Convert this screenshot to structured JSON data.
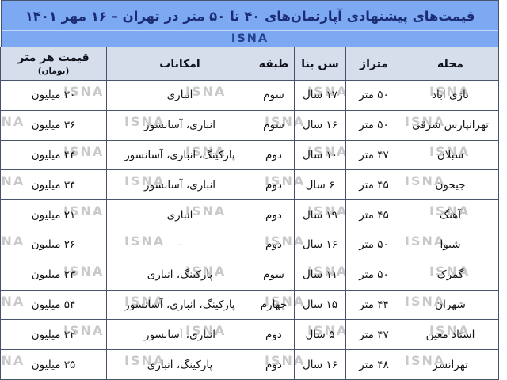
{
  "banner": {
    "title": "قیمت‌های پیشنهادی آپارتمان‌های ۴۰ تا ۵۰ متر در تهران – ۱۶ مهر ۱۴۰۱",
    "logo": "ISNA"
  },
  "watermark": {
    "text": "ISNA"
  },
  "colors": {
    "banner_bg": "#7DA9F2",
    "header_bg": "#D6DEEC",
    "title_text": "#1B2C74",
    "logo_text": "#24418F",
    "border": "#46536b",
    "watermark": "#c9c9c9"
  },
  "chart_data": {
    "type": "table",
    "title": "قیمت‌های پیشنهادی آپارتمان‌های ۴۰ تا ۵۰ متر در تهران – ۱۶ مهر ۱۴۰۱",
    "source_logo": "ISNA",
    "columns": [
      {
        "key": "mahalleh",
        "label": "محله"
      },
      {
        "key": "metraj",
        "label": "متراژ"
      },
      {
        "key": "sen_bana",
        "label": "سن بنا"
      },
      {
        "key": "tabaqeh",
        "label": "طبقه"
      },
      {
        "key": "emkanat",
        "label": "امکانات"
      },
      {
        "key": "gheymat",
        "label": "قیمت هر متر",
        "sub": "(تومان)"
      }
    ],
    "rows": [
      [
        "نازی آباد",
        "۵۰ متر",
        "۱۷ سال",
        "سوم",
        "انباری",
        "۳۰ میلیون"
      ],
      [
        "تهرانپارس شرقی",
        "۵۰ متر",
        "۱۶ سال",
        "سوم",
        "انباری، آسانسور",
        "۳۶ میلیون"
      ],
      [
        "سبلان",
        "۴۷ متر",
        "۱۰ سال",
        "دوم",
        "پارکینگ، انباری، آسانسور",
        "۴۴ میلیون"
      ],
      [
        "جیحون",
        "۴۵ متر",
        "۶ سال",
        "دوم",
        "انباری، آسانسور",
        "۳۴ میلیون"
      ],
      [
        "آهنگ",
        "۴۵ متر",
        "۱۹ سال",
        "دوم",
        "انباری",
        "۲۱ میلیون"
      ],
      [
        "شیوا",
        "۵۰ متر",
        "۱۶ سال",
        "دوم",
        "-",
        "۲۶ میلیون"
      ],
      [
        "گمرک",
        "۵۰ متر",
        "۱۱ سال",
        "سوم",
        "پارکینگ، انباری",
        "۲۳ میلیون"
      ],
      [
        "شهران",
        "۴۴ متر",
        "۱۵ سال",
        "چهارم",
        "پارکینگ، انباری، آسانسور",
        "۵۴ میلیون"
      ],
      [
        "استاد معین",
        "۴۷ متر",
        "۵ سال",
        "دوم",
        "انباری، آسانسور",
        "۳۲ میلیون"
      ],
      [
        "تهرانسر",
        "۴۸ متر",
        "۱۶ سال",
        "دوم",
        "پارکینگ، انباری",
        "۳۵ میلیون"
      ]
    ]
  }
}
